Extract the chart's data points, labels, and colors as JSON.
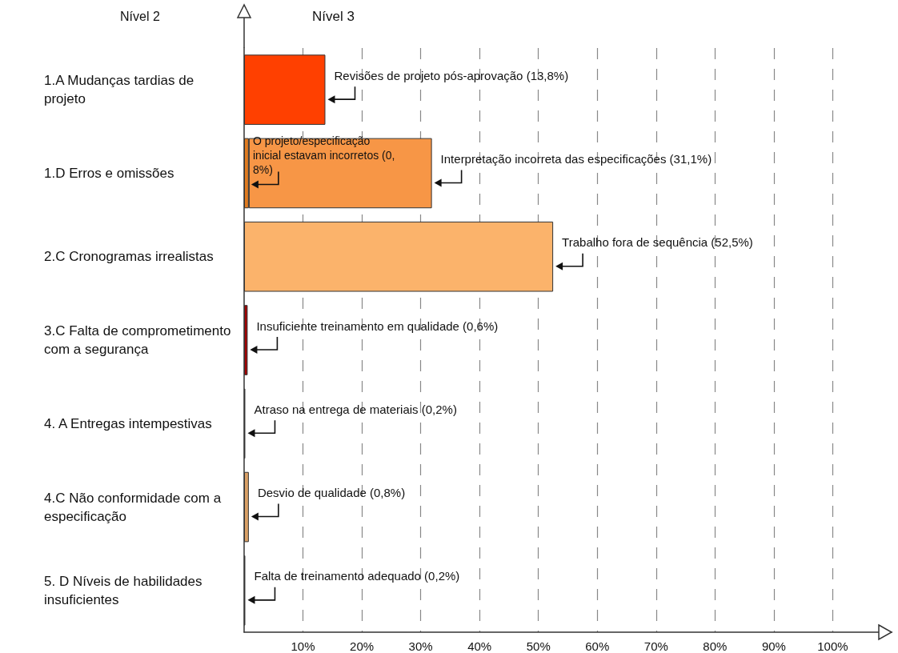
{
  "chart_data": {
    "type": "bar",
    "orientation": "horizontal",
    "stacked": true,
    "ylabel": "Nível 2",
    "annotations": [
      "Nível 3"
    ],
    "categories": [
      "1.A Mudanças tardias de projeto",
      "1.D Erros e omissões",
      "2.C Cronogramas irrealistas",
      "3.C Falta de comprometimento com a segurança",
      "4. A Entregas intempestivas",
      "4.C Não conformidade com a especificação",
      "5. D Níveis de habilidades insuficientes"
    ],
    "xlim": [
      0,
      110
    ],
    "xticks": [
      {
        "value": 10,
        "label": "10%"
      },
      {
        "value": 20,
        "label": "20%"
      },
      {
        "value": 30,
        "label": "30%"
      },
      {
        "value": 40,
        "label": "40%"
      },
      {
        "value": 50,
        "label": "50%"
      },
      {
        "value": 60,
        "label": "60%"
      },
      {
        "value": 70,
        "label": "70%"
      },
      {
        "value": 80,
        "label": "80%"
      },
      {
        "value": 90,
        "label": "90%"
      },
      {
        "value": 100,
        "label": "100%"
      }
    ],
    "grid": "x",
    "series": [
      {
        "colors": [
          "#ff4000",
          "#e07b20",
          "#fbb36b",
          "#a00000",
          "#000000",
          "#d9a066",
          "#000000"
        ],
        "values": [
          13.8,
          0.8,
          52.5,
          0.6,
          0.2,
          0.8,
          0.2
        ],
        "value_labels": [
          "Revisões de projeto pós-aprovação (13,8%)",
          "O projeto/especificação inicial estavam incorretos (0,8%)",
          "Trabalho fora de sequência (52,5%)",
          "Insuficiente treinamento em qualidade (0,6%)",
          "Atraso na entrega de materiais (0,2%)",
          "Desvio de qualidade (0,8%)",
          "Falta de treinamento adequado (0,2%)"
        ]
      },
      {
        "color": "#f79646",
        "values": [
          null,
          31.1,
          null,
          null,
          null,
          null,
          null
        ],
        "value_labels": [
          null,
          "Interpretação incorreta das especificações (31,1%)",
          null,
          null,
          null,
          null,
          null
        ]
      }
    ]
  }
}
